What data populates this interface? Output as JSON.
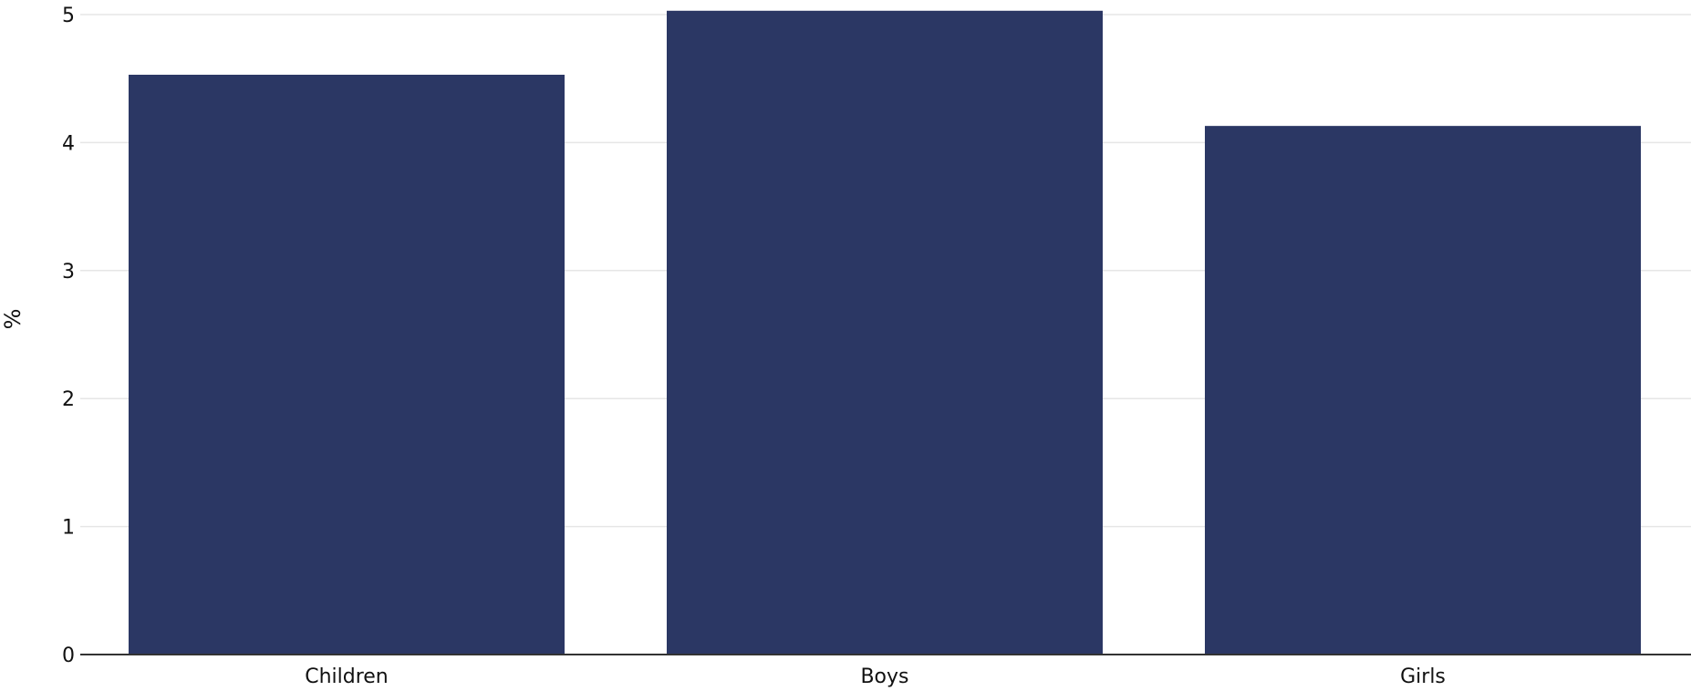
{
  "chart_data": {
    "type": "bar",
    "categories": [
      "Children",
      "Boys",
      "Girls"
    ],
    "values": [
      4.53,
      5.03,
      4.13
    ],
    "ylabel": "%",
    "xlabel": "",
    "ylim": [
      0,
      5
    ],
    "y_ticks": [
      "0",
      "1",
      "2",
      "3",
      "4",
      "5"
    ],
    "grid": true,
    "colors": {
      "bar": "#2b3764",
      "grid": "#e6e6e6",
      "axis": "#333333"
    }
  }
}
